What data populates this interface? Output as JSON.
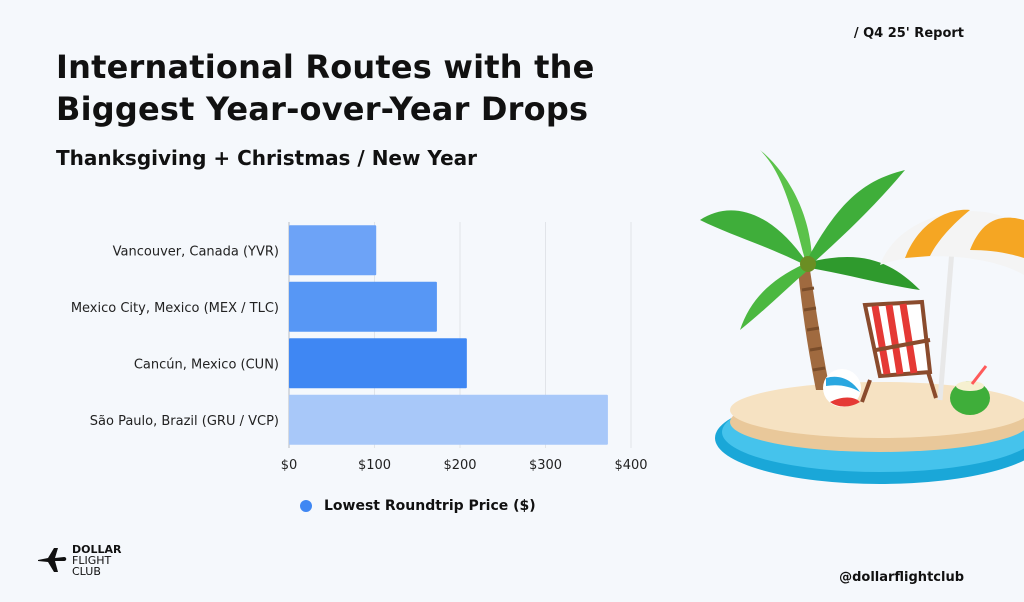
{
  "header": {
    "report_tag": "/ Q4 25' Report",
    "title_line1": "International Routes with the",
    "title_line2": "Biggest Year-over-Year  Drops",
    "subtitle": "Thanksgiving + Christmas / New Year"
  },
  "chart_data": {
    "type": "bar",
    "orientation": "horizontal",
    "categories": [
      "Vancouver, Canada (YVR)",
      "Mexico City, Mexico (MEX / TLC)",
      "Cancún, Mexico (CUN)",
      "São Paulo, Brazil (GRU / VCP)"
    ],
    "series": [
      {
        "name": "Lowest Roundtrip Price ($)",
        "values": [
          102,
          173,
          208,
          373
        ]
      }
    ],
    "bar_colors": [
      "#6da3f7",
      "#5797f5",
      "#3f87f3",
      "#a8c8f9"
    ],
    "xlim": [
      0,
      400
    ],
    "xticks": [
      "$0",
      "$100",
      "$200",
      "$300",
      "$400"
    ],
    "grid": true,
    "legend_position": "bottom"
  },
  "legend": {
    "label": "Lowest Roundtrip Price ($)",
    "color": "#3f87f3"
  },
  "logo": {
    "line1": "DOLLAR",
    "line2": "FLIGHT",
    "line3": "CLUB"
  },
  "footer": {
    "handle": "@dollarflightclub"
  },
  "illustration": {
    "name": "beach-island-icon"
  }
}
